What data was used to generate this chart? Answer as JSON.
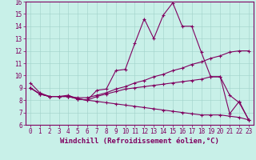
{
  "xlabel": "Windchill (Refroidissement éolien,°C)",
  "background_color": "#c8f0e8",
  "line_color": "#800060",
  "grid_color": "#a0d0c8",
  "xlim": [
    -0.5,
    23.5
  ],
  "ylim": [
    6,
    16
  ],
  "xticks": [
    0,
    1,
    2,
    3,
    4,
    5,
    6,
    7,
    8,
    9,
    10,
    11,
    12,
    13,
    14,
    15,
    16,
    17,
    18,
    19,
    20,
    21,
    22,
    23
  ],
  "yticks": [
    6,
    7,
    8,
    9,
    10,
    11,
    12,
    13,
    14,
    15,
    16
  ],
  "series": [
    {
      "x": [
        0,
        1,
        2,
        3,
        4,
        5,
        6,
        7,
        8,
        9,
        10,
        11,
        12,
        13,
        14,
        15,
        16,
        17,
        18,
        19,
        20,
        21,
        22,
        23
      ],
      "y": [
        9.4,
        8.6,
        8.3,
        8.3,
        8.4,
        8.1,
        8.0,
        8.8,
        8.9,
        10.4,
        10.5,
        12.6,
        14.6,
        13.0,
        14.9,
        15.9,
        14.0,
        14.0,
        11.9,
        9.9,
        9.9,
        6.9,
        7.9,
        6.4
      ]
    },
    {
      "x": [
        0,
        1,
        2,
        3,
        4,
        5,
        6,
        7,
        8,
        9,
        10,
        11,
        12,
        13,
        14,
        15,
        16,
        17,
        18,
        19,
        20,
        21,
        22,
        23
      ],
      "y": [
        9.0,
        8.5,
        8.3,
        8.3,
        8.3,
        8.2,
        8.2,
        8.4,
        8.6,
        8.9,
        9.1,
        9.4,
        9.6,
        9.9,
        10.1,
        10.4,
        10.6,
        10.9,
        11.1,
        11.4,
        11.6,
        11.9,
        12.0,
        12.0
      ]
    },
    {
      "x": [
        0,
        1,
        2,
        3,
        4,
        5,
        6,
        7,
        8,
        9,
        10,
        11,
        12,
        13,
        14,
        15,
        16,
        17,
        18,
        19,
        20,
        21,
        22,
        23
      ],
      "y": [
        9.0,
        8.5,
        8.3,
        8.3,
        8.3,
        8.1,
        8.0,
        8.3,
        8.5,
        8.7,
        8.9,
        9.0,
        9.1,
        9.2,
        9.3,
        9.4,
        9.5,
        9.6,
        9.7,
        9.9,
        9.9,
        8.4,
        7.8,
        6.4
      ]
    },
    {
      "x": [
        0,
        1,
        2,
        3,
        4,
        5,
        6,
        7,
        8,
        9,
        10,
        11,
        12,
        13,
        14,
        15,
        16,
        17,
        18,
        19,
        20,
        21,
        22,
        23
      ],
      "y": [
        9.0,
        8.5,
        8.3,
        8.3,
        8.3,
        8.1,
        8.0,
        7.9,
        7.8,
        7.7,
        7.6,
        7.5,
        7.4,
        7.3,
        7.2,
        7.1,
        7.0,
        6.9,
        6.8,
        6.8,
        6.8,
        6.7,
        6.6,
        6.4
      ]
    }
  ],
  "markersize": 3,
  "linewidth": 0.8,
  "tick_fontsize": 5.5,
  "label_fontsize": 6.5,
  "tick_color": "#800060",
  "axis_color": "#800060"
}
